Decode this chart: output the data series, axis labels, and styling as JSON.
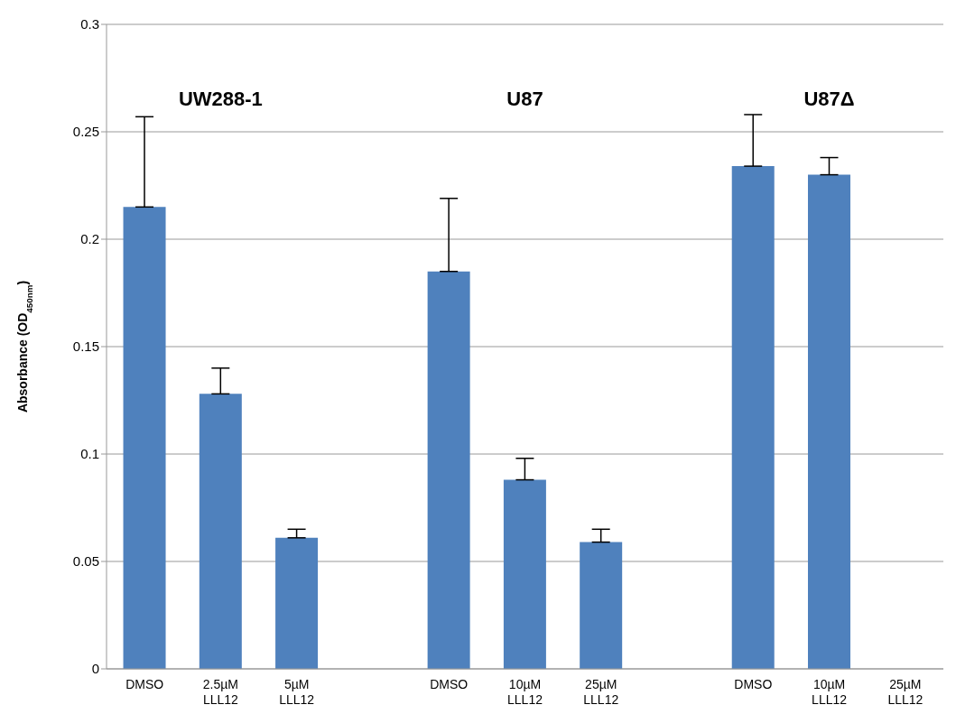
{
  "chart_data": {
    "type": "bar",
    "ylabel": "Absorbance (OD$_{450nm}$)",
    "categories": [
      "DMSO",
      "2.5µM LLL12",
      "5µM LLL12",
      null,
      "DMSO",
      "10µM LLL12",
      "25µM LLL12",
      null,
      "DMSO",
      "10µM LLL12",
      "25µM LLL12"
    ],
    "values": [
      0.215,
      0.128,
      0.061,
      null,
      0.185,
      0.088,
      0.059,
      null,
      0.234,
      0.23,
      null
    ],
    "errors": [
      [
        0.215,
        0.257
      ],
      [
        0.128,
        0.14
      ],
      [
        0.061,
        0.065
      ],
      null,
      [
        0.185,
        0.219
      ],
      [
        0.088,
        0.098
      ],
      [
        0.059,
        0.065
      ],
      null,
      [
        0.234,
        0.258
      ],
      [
        0.23,
        0.238
      ],
      null
    ],
    "color": "#4f81bd",
    "ylim": [
      0,
      0.3
    ],
    "yticks": [
      0,
      0.05,
      0.1,
      0.15,
      0.2,
      0.25,
      0.3
    ],
    "grid": "y",
    "annotations": [
      "UW288-1",
      "U87",
      "U87Δ"
    ]
  }
}
